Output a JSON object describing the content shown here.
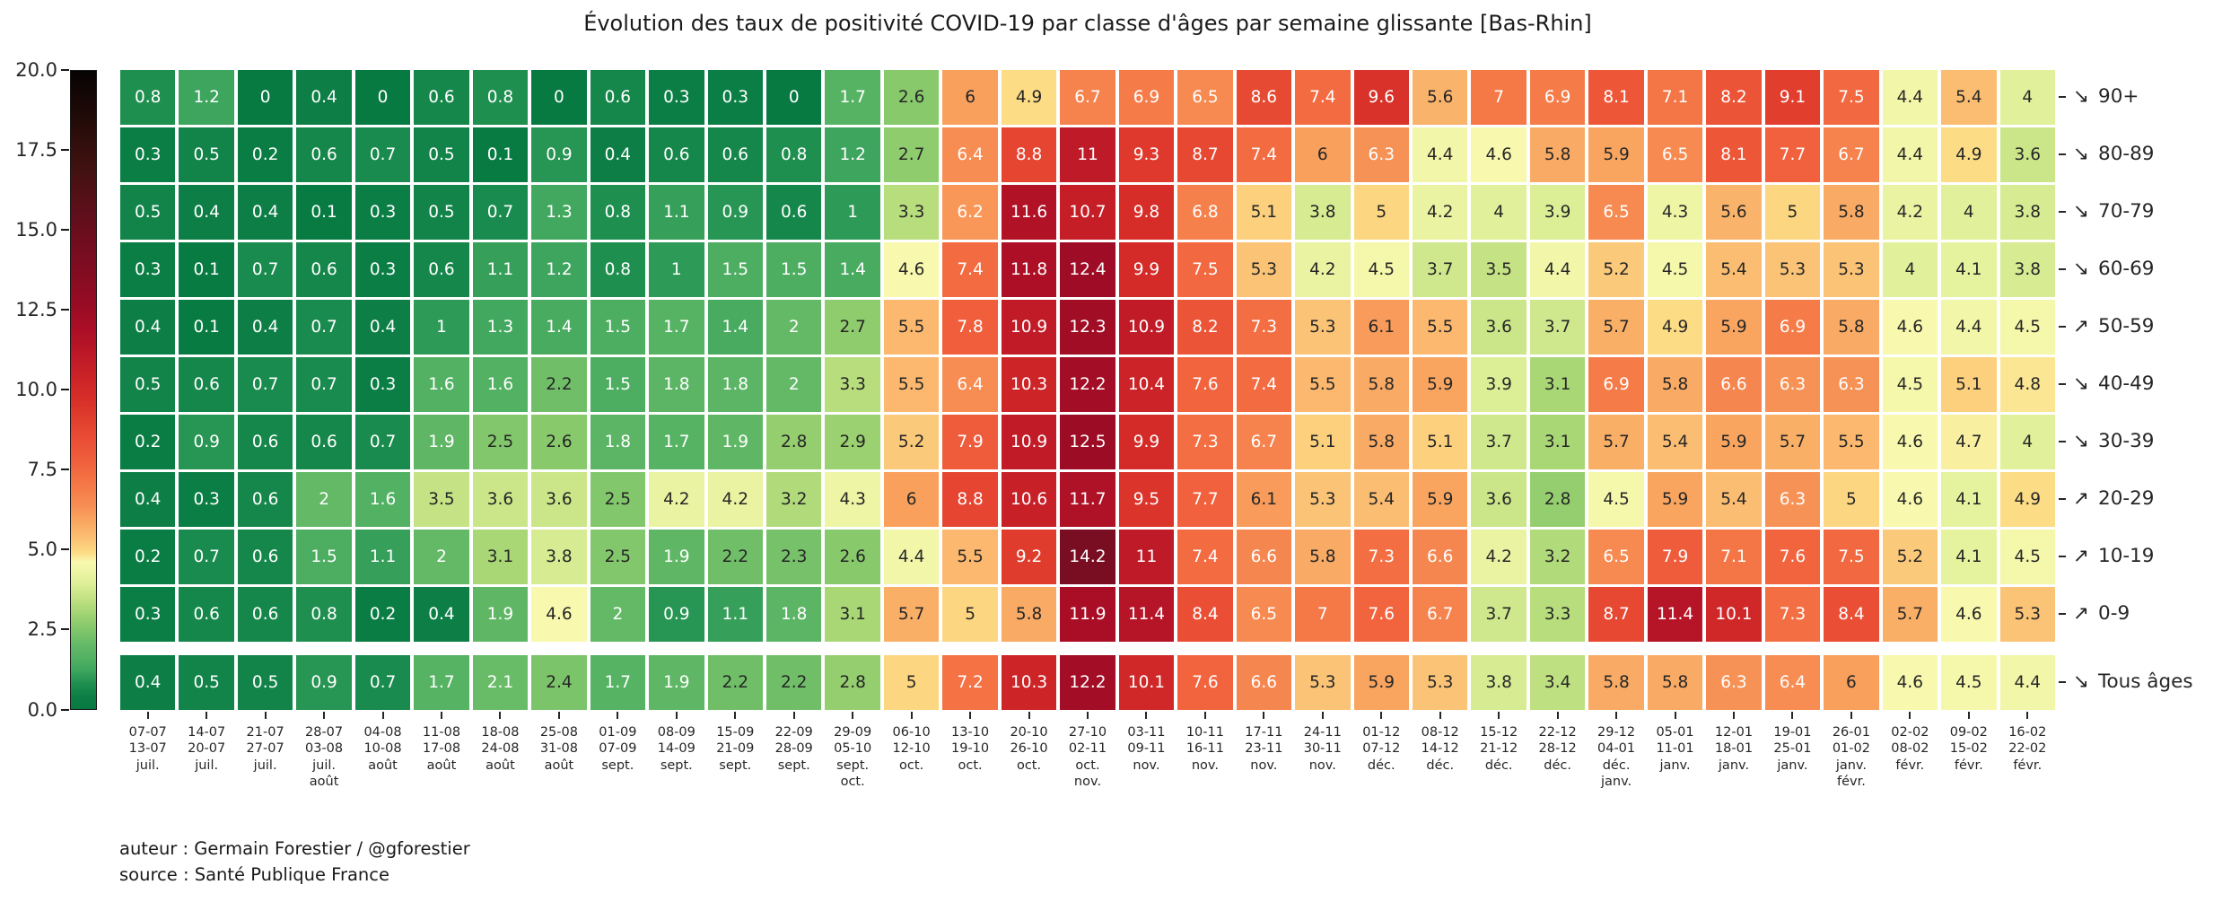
{
  "title": "Évolution des taux de positivité COVID-19 par classe d'âges par semaine glissante [Bas-Rhin]",
  "footer": {
    "author_line": "auteur : Germain Forestier / @gforestier",
    "source_line": "source : Santé Publique France"
  },
  "colorbar": {
    "tick_labels": [
      "20.0",
      "17.5",
      "15.0",
      "12.5",
      "10.0",
      "7.5",
      "5.0",
      "2.5",
      "0.0"
    ],
    "vmin": 0,
    "vmax": 20,
    "gradient_stops": [
      [
        0,
        "#067a41"
      ],
      [
        0.4,
        "#0d7f46"
      ],
      [
        0.8,
        "#1f8f50"
      ],
      [
        1.2,
        "#3da55d"
      ],
      [
        1.6,
        "#52b163"
      ],
      [
        2.0,
        "#63b966"
      ],
      [
        2.4,
        "#7cc46a"
      ],
      [
        2.9,
        "#9bd170"
      ],
      [
        3.4,
        "#bfe080"
      ],
      [
        3.9,
        "#dcee96"
      ],
      [
        4.3,
        "#eef5a5"
      ],
      [
        4.6,
        "#f8f9ae"
      ],
      [
        4.9,
        "#fcdc85"
      ],
      [
        5.4,
        "#fbbd72"
      ],
      [
        5.9,
        "#f9a560"
      ],
      [
        6.4,
        "#f78d53"
      ],
      [
        7.0,
        "#f57947"
      ],
      [
        7.7,
        "#f1613d"
      ],
      [
        8.4,
        "#ea4f35"
      ],
      [
        9.1,
        "#e13e2e"
      ],
      [
        9.8,
        "#d62d28"
      ],
      [
        10.5,
        "#c92127"
      ],
      [
        11.2,
        "#bb1727"
      ],
      [
        11.9,
        "#aa0e26"
      ],
      [
        12.7,
        "#970c24"
      ],
      [
        13.6,
        "#840c22"
      ],
      [
        14.5,
        "#730d20"
      ],
      [
        15.5,
        "#5f0f1b"
      ],
      [
        17.0,
        "#3f1110"
      ],
      [
        18.5,
        "#220b08"
      ],
      [
        20,
        "#070303"
      ]
    ],
    "annotation_colors": {
      "light": "#ffffff",
      "dark": "#262626"
    }
  },
  "chart_data": {
    "type": "heatmap",
    "title": "Évolution des taux de positivité COVID-19 par classe d'âges par semaine glissante [Bas-Rhin]",
    "value_range": [
      0,
      20
    ],
    "trend_arrows": {
      "down": "↘",
      "up": "↗"
    },
    "x_categories": [
      [
        "07-07",
        "13-07",
        "juil."
      ],
      [
        "14-07",
        "20-07",
        "juil."
      ],
      [
        "21-07",
        "27-07",
        "juil."
      ],
      [
        "28-07",
        "03-08",
        "juil.",
        "août"
      ],
      [
        "04-08",
        "10-08",
        "août"
      ],
      [
        "11-08",
        "17-08",
        "août"
      ],
      [
        "18-08",
        "24-08",
        "août"
      ],
      [
        "25-08",
        "31-08",
        "août"
      ],
      [
        "01-09",
        "07-09",
        "sept."
      ],
      [
        "08-09",
        "14-09",
        "sept."
      ],
      [
        "15-09",
        "21-09",
        "sept."
      ],
      [
        "22-09",
        "28-09",
        "sept."
      ],
      [
        "29-09",
        "05-10",
        "sept.",
        "oct."
      ],
      [
        "06-10",
        "12-10",
        "oct."
      ],
      [
        "13-10",
        "19-10",
        "oct."
      ],
      [
        "20-10",
        "26-10",
        "oct."
      ],
      [
        "27-10",
        "02-11",
        "oct.",
        "nov."
      ],
      [
        "03-11",
        "09-11",
        "nov."
      ],
      [
        "10-11",
        "16-11",
        "nov."
      ],
      [
        "17-11",
        "23-11",
        "nov."
      ],
      [
        "24-11",
        "30-11",
        "nov."
      ],
      [
        "01-12",
        "07-12",
        "déc."
      ],
      [
        "08-12",
        "14-12",
        "déc."
      ],
      [
        "15-12",
        "21-12",
        "déc."
      ],
      [
        "22-12",
        "28-12",
        "déc."
      ],
      [
        "29-12",
        "04-01",
        "déc.",
        "janv."
      ],
      [
        "05-01",
        "11-01",
        "janv."
      ],
      [
        "12-01",
        "18-01",
        "janv."
      ],
      [
        "19-01",
        "25-01",
        "janv."
      ],
      [
        "26-01",
        "01-02",
        "janv.",
        "févr."
      ],
      [
        "02-02",
        "08-02",
        "févr."
      ],
      [
        "09-02",
        "15-02",
        "févr."
      ],
      [
        "16-02",
        "22-02",
        "févr."
      ]
    ],
    "rows": [
      {
        "label": "90+",
        "trend": "down",
        "separated": false,
        "values": [
          0.8,
          1.2,
          0,
          0.4,
          0,
          0.6,
          0.8,
          0,
          0.6,
          0.3,
          0.3,
          0,
          1.7,
          2.6,
          6,
          4.9,
          6.7,
          6.9,
          6.5,
          8.6,
          7.4,
          9.6,
          5.6,
          7,
          6.9,
          8.1,
          7.1,
          8.2,
          9.1,
          7.5,
          4.4,
          5.4,
          4
        ]
      },
      {
        "label": "80-89",
        "trend": "down",
        "separated": false,
        "values": [
          0.3,
          0.5,
          0.2,
          0.6,
          0.7,
          0.5,
          0.1,
          0.9,
          0.4,
          0.6,
          0.6,
          0.8,
          1.2,
          2.7,
          6.4,
          8.8,
          11,
          9.3,
          8.7,
          7.4,
          6,
          6.3,
          4.4,
          4.6,
          5.8,
          5.9,
          6.5,
          8.1,
          7.7,
          6.7,
          4.4,
          4.9,
          3.6
        ]
      },
      {
        "label": "70-79",
        "trend": "down",
        "separated": false,
        "values": [
          0.5,
          0.4,
          0.4,
          0.1,
          0.3,
          0.5,
          0.7,
          1.3,
          0.8,
          1.1,
          0.9,
          0.6,
          1,
          3.3,
          6.2,
          11.6,
          10.7,
          9.8,
          6.8,
          5.1,
          3.8,
          5,
          4.2,
          4,
          3.9,
          6.5,
          4.3,
          5.6,
          5,
          5.8,
          4.2,
          4,
          3.8
        ]
      },
      {
        "label": "60-69",
        "trend": "down",
        "separated": false,
        "values": [
          0.3,
          0.1,
          0.7,
          0.6,
          0.3,
          0.6,
          1.1,
          1.2,
          0.8,
          1,
          1.5,
          1.5,
          1.4,
          4.6,
          7.4,
          11.8,
          12.4,
          9.9,
          7.5,
          5.3,
          4.2,
          4.5,
          3.7,
          3.5,
          4.4,
          5.2,
          4.5,
          5.4,
          5.3,
          5.3,
          4,
          4.1,
          3.8
        ]
      },
      {
        "label": "50-59",
        "trend": "up",
        "separated": false,
        "values": [
          0.4,
          0.1,
          0.4,
          0.7,
          0.4,
          1,
          1.3,
          1.4,
          1.5,
          1.7,
          1.4,
          2,
          2.7,
          5.5,
          7.8,
          10.9,
          12.3,
          10.9,
          8.2,
          7.3,
          5.3,
          6.1,
          5.5,
          3.6,
          3.7,
          5.7,
          4.9,
          5.9,
          6.9,
          5.8,
          4.6,
          4.4,
          4.5
        ]
      },
      {
        "label": "40-49",
        "trend": "down",
        "separated": false,
        "values": [
          0.5,
          0.6,
          0.7,
          0.7,
          0.3,
          1.6,
          1.6,
          2.2,
          1.5,
          1.8,
          1.8,
          2,
          3.3,
          5.5,
          6.4,
          10.3,
          12.2,
          10.4,
          7.6,
          7.4,
          5.5,
          5.8,
          5.9,
          3.9,
          3.1,
          6.9,
          5.8,
          6.6,
          6.3,
          6.3,
          4.5,
          5.1,
          4.8
        ]
      },
      {
        "label": "30-39",
        "trend": "down",
        "separated": false,
        "values": [
          0.2,
          0.9,
          0.6,
          0.6,
          0.7,
          1.9,
          2.5,
          2.6,
          1.8,
          1.7,
          1.9,
          2.8,
          2.9,
          5.2,
          7.9,
          10.9,
          12.5,
          9.9,
          7.3,
          6.7,
          5.1,
          5.8,
          5.1,
          3.7,
          3.1,
          5.7,
          5.4,
          5.9,
          5.7,
          5.5,
          4.6,
          4.7,
          4
        ]
      },
      {
        "label": "20-29",
        "trend": "up",
        "separated": false,
        "values": [
          0.4,
          0.3,
          0.6,
          2,
          1.6,
          3.5,
          3.6,
          3.6,
          2.5,
          4.2,
          4.2,
          3.2,
          4.3,
          6,
          8.8,
          10.6,
          11.7,
          9.5,
          7.7,
          6.1,
          5.3,
          5.4,
          5.9,
          3.6,
          2.8,
          4.5,
          5.9,
          5.4,
          6.3,
          5,
          4.6,
          4.1,
          4.9
        ]
      },
      {
        "label": "10-19",
        "trend": "up",
        "separated": false,
        "values": [
          0.2,
          0.7,
          0.6,
          1.5,
          1.1,
          2,
          3.1,
          3.8,
          2.5,
          1.9,
          2.2,
          2.3,
          2.6,
          4.4,
          5.5,
          9.2,
          14.2,
          11,
          7.4,
          6.6,
          5.8,
          7.3,
          6.6,
          4.2,
          3.2,
          6.5,
          7.9,
          7.1,
          7.6,
          7.5,
          5.2,
          4.1,
          4.5
        ]
      },
      {
        "label": "0-9",
        "trend": "up",
        "separated": false,
        "values": [
          0.3,
          0.6,
          0.6,
          0.8,
          0.2,
          0.4,
          1.9,
          4.6,
          2,
          0.9,
          1.1,
          1.8,
          3.1,
          5.7,
          5,
          5.8,
          11.9,
          11.4,
          8.4,
          6.5,
          7,
          7.6,
          6.7,
          3.7,
          3.3,
          8.7,
          11.4,
          10.1,
          7.3,
          8.4,
          5.7,
          4.6,
          5.3
        ]
      },
      {
        "label": "Tous âges",
        "trend": "down",
        "separated": true,
        "values": [
          0.4,
          0.5,
          0.5,
          0.9,
          0.7,
          1.7,
          2.1,
          2.4,
          1.7,
          1.9,
          2.2,
          2.2,
          2.8,
          5,
          7.2,
          10.3,
          12.2,
          10.1,
          7.6,
          6.6,
          5.3,
          5.9,
          5.3,
          3.8,
          3.4,
          5.8,
          5.8,
          6.3,
          6.4,
          6,
          4.6,
          4.5,
          4.4
        ]
      }
    ]
  }
}
